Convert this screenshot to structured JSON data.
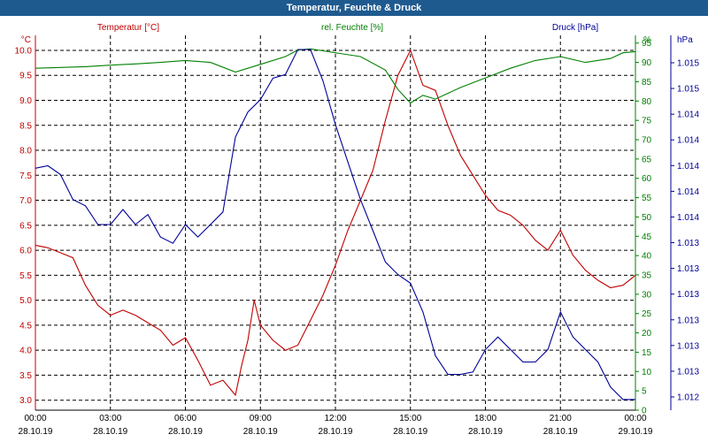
{
  "window": {
    "title": "Temperatur, Feuchte & Druck"
  },
  "chart_data": {
    "type": "line",
    "title": "Temperatur, Feuchte & Druck",
    "grid": true,
    "colors": {
      "temperature": "#c00000",
      "humidity": "#008000",
      "pressure": "#000099",
      "titlebar": "#1f5a8f"
    },
    "x_ticks": [
      {
        "time": "00:00",
        "date": "28.10.19"
      },
      {
        "time": "03:00",
        "date": "28.10.19"
      },
      {
        "time": "06:00",
        "date": "28.10.19"
      },
      {
        "time": "09:00",
        "date": "28.10.19"
      },
      {
        "time": "12:00",
        "date": "28.10.19"
      },
      {
        "time": "15:00",
        "date": "28.10.19"
      },
      {
        "time": "18:00",
        "date": "28.10.19"
      },
      {
        "time": "21:00",
        "date": "28.10.19"
      },
      {
        "time": "00:00",
        "date": "29.10.19"
      }
    ],
    "xlim": [
      "28.10.19 00:00",
      "29.10.19 00:00"
    ],
    "axes": {
      "temperature": {
        "label": "Temperatur [°C]",
        "unit": "°C",
        "ylim": [
          2.8,
          10.3
        ],
        "ticks": [
          "3.0",
          "3.5",
          "4.0",
          "4.5",
          "5.0",
          "5.5",
          "6.0",
          "6.5",
          "7.0",
          "7.5",
          "8.0",
          "8.5",
          "9.0",
          "9.5",
          "10.0"
        ]
      },
      "humidity": {
        "label": "rel. Feuchte [%]",
        "unit": "%",
        "ylim": [
          0,
          97
        ],
        "ticks": [
          "0",
          "5",
          "10",
          "15",
          "20",
          "25",
          "30",
          "35",
          "40",
          "45",
          "50",
          "55",
          "60",
          "65",
          "70",
          "75",
          "80",
          "85",
          "90",
          "95"
        ]
      },
      "pressure": {
        "label": "Druck [hPa]",
        "unit": "hPa",
        "ticks": [
          "1.012",
          "1.013",
          "1.013",
          "1.013",
          "1.013",
          "1.013",
          "1.013",
          "1.014",
          "1.014",
          "1.014",
          "1.014",
          "1.014",
          "1.015",
          "1.015"
        ]
      }
    },
    "series": [
      {
        "name": "Temperatur [°C]",
        "axis": "temperature",
        "color": "#c00000",
        "x": [
          "00:00",
          "00:30",
          "01:00",
          "01:30",
          "02:00",
          "02:30",
          "03:00",
          "03:30",
          "04:00",
          "04:30",
          "05:00",
          "05:30",
          "06:00",
          "06:30",
          "07:00",
          "07:30",
          "08:00",
          "08:15",
          "08:30",
          "08:45",
          "09:00",
          "09:30",
          "10:00",
          "10:30",
          "11:00",
          "11:30",
          "12:00",
          "12:30",
          "13:00",
          "13:30",
          "14:00",
          "14:30",
          "15:00",
          "15:30",
          "16:00",
          "16:30",
          "17:00",
          "17:30",
          "18:00",
          "18:30",
          "19:00",
          "19:30",
          "20:00",
          "20:30",
          "21:00",
          "21:30",
          "22:00",
          "22:30",
          "23:00",
          "23:30",
          "24:00"
        ],
        "values": [
          6.1,
          6.05,
          5.95,
          5.85,
          5.3,
          4.9,
          4.7,
          4.8,
          4.7,
          4.55,
          4.4,
          4.1,
          4.25,
          3.8,
          3.3,
          3.4,
          3.1,
          3.7,
          4.2,
          5.0,
          4.5,
          4.2,
          4.0,
          4.1,
          4.6,
          5.1,
          5.7,
          6.4,
          7.0,
          7.6,
          8.6,
          9.5,
          10.0,
          9.3,
          9.2,
          8.5,
          7.9,
          7.5,
          7.1,
          6.8,
          6.7,
          6.5,
          6.2,
          6.0,
          6.4,
          5.9,
          5.6,
          5.4,
          5.25,
          5.3,
          5.5
        ]
      },
      {
        "name": "rel. Feuchte [%]",
        "axis": "humidity",
        "color": "#008000",
        "x": [
          "00:00",
          "01:00",
          "02:00",
          "03:00",
          "04:00",
          "05:00",
          "06:00",
          "07:00",
          "08:00",
          "09:00",
          "10:00",
          "10:30",
          "11:00",
          "11:30",
          "12:00",
          "13:00",
          "14:00",
          "14:30",
          "15:00",
          "15:30",
          "16:00",
          "17:00",
          "18:00",
          "19:00",
          "20:00",
          "21:00",
          "22:00",
          "23:00",
          "23:30",
          "24:00"
        ],
        "values": [
          88.5,
          88.7,
          88.9,
          89.3,
          89.6,
          90.0,
          90.5,
          90.0,
          87.5,
          89.5,
          91.5,
          93.2,
          93.5,
          93.0,
          92.5,
          91.5,
          88.0,
          83.0,
          79.5,
          81.5,
          80.5,
          83.5,
          86.0,
          88.5,
          90.5,
          91.5,
          90.0,
          91.0,
          92.5,
          92.8
        ]
      },
      {
        "name": "Druck [hPa]",
        "axis": "pressure",
        "color": "#000099",
        "x": [
          "00:00",
          "00:30",
          "01:00",
          "01:30",
          "02:00",
          "02:30",
          "03:00",
          "03:30",
          "04:00",
          "04:30",
          "05:00",
          "05:30",
          "06:00",
          "06:30",
          "07:00",
          "07:30",
          "08:00",
          "08:30",
          "09:00",
          "09:30",
          "10:00",
          "10:30",
          "11:00",
          "11:30",
          "12:00",
          "12:30",
          "13:00",
          "13:30",
          "14:00",
          "14:30",
          "15:00",
          "15:30",
          "16:00",
          "16:30",
          "17:00",
          "17:30",
          "18:00",
          "18:30",
          "19:00",
          "19:30",
          "20:00",
          "20:30",
          "21:00",
          "21:30",
          "22:00",
          "22:30",
          "23:00",
          "23:30",
          "24:00"
        ],
        "values": [
          1.01395,
          1.01397,
          1.0139,
          1.0137,
          1.01365,
          1.0135,
          1.0135,
          1.01362,
          1.0135,
          1.01358,
          1.0134,
          1.01335,
          1.0135,
          1.0134,
          1.0135,
          1.0136,
          1.0142,
          1.0144,
          1.0145,
          1.01467,
          1.0147,
          1.0149,
          1.0149,
          1.01465,
          1.0143,
          1.014,
          1.0137,
          1.01345,
          1.0132,
          1.0131,
          1.01303,
          1.0128,
          1.01245,
          1.0123,
          1.0123,
          1.01232,
          1.0125,
          1.0126,
          1.0125,
          1.0124,
          1.0124,
          1.0125,
          1.0128,
          1.0126,
          1.0125,
          1.0124,
          1.0122,
          1.0121,
          1.0121
        ]
      }
    ]
  }
}
